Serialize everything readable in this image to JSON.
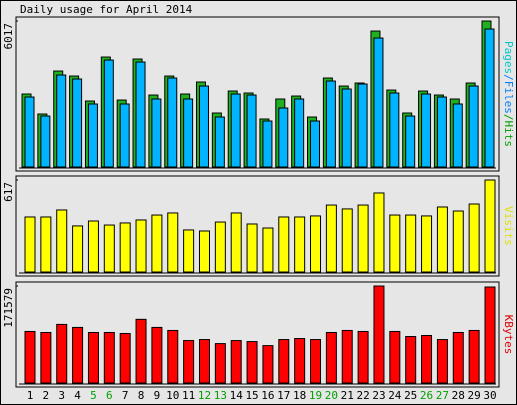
{
  "chart_data": [
    {
      "type": "bar",
      "title": "Daily usage for April 2014",
      "ylabel_parts": [
        {
          "text": "Pages",
          "color": "#00c8c8"
        },
        {
          "text": "/Files",
          "color": "#0080ff"
        },
        {
          "text": "/Hits",
          "color": "#00a000"
        }
      ],
      "series": [
        {
          "name": "Hits",
          "color": "#20b020",
          "values": [
            3008,
            2184,
            3955,
            3749,
            2719,
            4532,
            2760,
            4450,
            2966,
            3749,
            3008,
            3502,
            2225,
            3131,
            3049,
            1978,
            2802,
            2925,
            2060,
            3667,
            3337,
            3461,
            5603,
            3172,
            2225,
            3131,
            2966,
            2802,
            3461,
            6017
          ]
        },
        {
          "name": "Files",
          "color": "#00b4ff",
          "values": [
            2884,
            2101,
            3790,
            3626,
            2596,
            4408,
            2596,
            4326,
            2802,
            3667,
            2802,
            3337,
            2060,
            3008,
            2966,
            1895,
            2431,
            2802,
            1895,
            3543,
            3214,
            3420,
            5315,
            3049,
            2101,
            3008,
            2884,
            2596,
            3337,
            5686
          ]
        }
      ],
      "ylim": [
        0,
        6017
      ],
      "yticks": [
        6017
      ]
    },
    {
      "type": "bar",
      "ylabel": "Visits",
      "ylabel_color": "#e0e000",
      "series": [
        {
          "name": "Visits",
          "color": "#ffff00",
          "values": [
            369,
            369,
            416,
            309,
            342,
            315,
            329,
            349,
            382,
            396,
            282,
            275,
            335,
            396,
            322,
            295,
            369,
            369,
            376,
            449,
            423,
            449,
            530,
            382,
            382,
            376,
            436,
            409,
            456,
            617
          ]
        }
      ],
      "ylim": [
        0,
        617
      ],
      "yticks": [
        617
      ]
    },
    {
      "type": "bar",
      "ylabel": "KBytes",
      "ylabel_color": "#e00000",
      "categories": [
        "1",
        "2",
        "3",
        "4",
        "5",
        "6",
        "7",
        "8",
        "9",
        "10",
        "11",
        "12",
        "13",
        "14",
        "15",
        "16",
        "17",
        "18",
        "19",
        "20",
        "21",
        "22",
        "23",
        "24",
        "25",
        "26",
        "27",
        "28",
        "29",
        "30"
      ],
      "category_colors": [
        "#000",
        "#000",
        "#000",
        "#000",
        "#00a000",
        "#00a000",
        "#000",
        "#000",
        "#000",
        "#000",
        "#000",
        "#00a000",
        "#00a000",
        "#000",
        "#000",
        "#000",
        "#000",
        "#000",
        "#00a000",
        "#00a000",
        "#000",
        "#000",
        "#000",
        "#000",
        "#000",
        "#00a000",
        "#00a000",
        "#000",
        "#000",
        "#000"
      ],
      "series": [
        {
          "name": "KBytes",
          "color": "#ff0000",
          "values": [
            91152,
            89365,
            103663,
            98302,
            89365,
            89365,
            87578,
            112600,
            98302,
            92940,
            75067,
            76854,
            69705,
            75067,
            73279,
            66130,
            76854,
            78641,
            76854,
            89365,
            92940,
            91152,
            171579,
            91152,
            82216,
            84003,
            76854,
            89365,
            92940,
            169794
          ]
        }
      ],
      "ylim": [
        0,
        171579
      ],
      "yticks": [
        171579
      ]
    }
  ]
}
